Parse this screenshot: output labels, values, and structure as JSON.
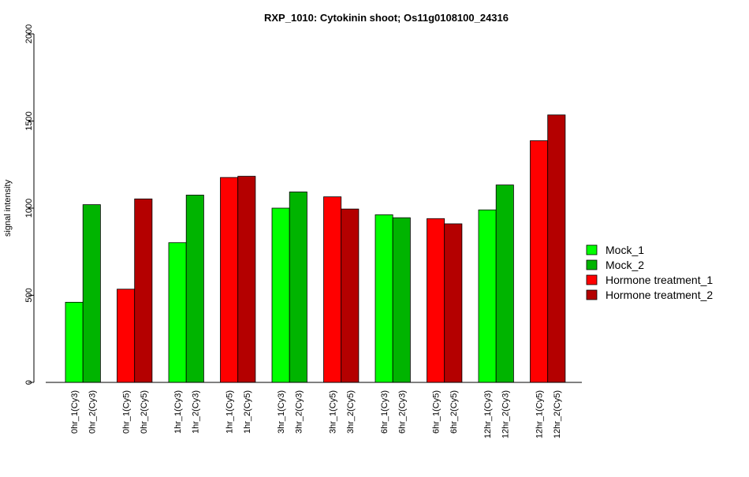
{
  "chart_data": {
    "type": "bar",
    "title": "RXP_1010: Cytokinin shoot; Os11g0108100_24316",
    "xlabel": "",
    "ylabel": "signal intensity",
    "ylim": [
      0,
      2000
    ],
    "yticks": [
      0,
      500,
      1000,
      1500,
      2000
    ],
    "legend_position": "right",
    "grid": false,
    "series": [
      {
        "name": "Mock_1",
        "color": "#00ff00"
      },
      {
        "name": "Mock_2",
        "color": "#00b400"
      },
      {
        "name": "Hormone treatment_1",
        "color": "#ff0000"
      },
      {
        "name": "Hormone treatment_2",
        "color": "#b40000"
      }
    ],
    "categories": [
      "0hr_1(Cy3)",
      "0hr_2(Cy3)",
      "0hr_1(Cy5)",
      "0hr_2(Cy5)",
      "1hr_1(Cy3)",
      "1hr_2(Cy3)",
      "1hr_1(Cy5)",
      "1hr_2(Cy5)",
      "3hr_1(Cy3)",
      "3hr_2(Cy3)",
      "3hr_1(Cy5)",
      "3hr_2(Cy5)",
      "6hr_1(Cy3)",
      "6hr_2(Cy3)",
      "6hr_1(Cy5)",
      "6hr_2(Cy5)",
      "12hr_1(Cy3)",
      "12hr_2(Cy3)",
      "12hr_1(Cy5)",
      "12hr_2(Cy5)"
    ],
    "values": [
      460,
      1020,
      535,
      1053,
      802,
      1075,
      1176,
      1183,
      1000,
      1093,
      1065,
      995,
      962,
      945,
      940,
      910,
      990,
      1133,
      1387,
      1535
    ],
    "bar_series": [
      0,
      1,
      2,
      3,
      0,
      1,
      2,
      3,
      0,
      1,
      2,
      3,
      0,
      1,
      2,
      3,
      0,
      1,
      2,
      3
    ]
  }
}
